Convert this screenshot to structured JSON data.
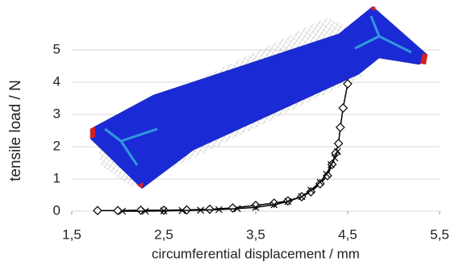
{
  "chart_data": {
    "type": "scatter",
    "xlabel": "circumferential displacement / mm",
    "ylabel": "tensile load / N",
    "xlim": [
      1.5,
      5.5
    ],
    "xticks": [
      {
        "value": 1.5,
        "label": "1,5"
      },
      {
        "value": 2.5,
        "label": "2,5"
      },
      {
        "value": 3.5,
        "label": "3,5"
      },
      {
        "value": 4.5,
        "label": "4,5"
      },
      {
        "value": 5.5,
        "label": "5,5"
      }
    ],
    "ylim": [
      0,
      5
    ],
    "yticks": [
      0,
      1,
      2,
      3,
      4,
      5
    ],
    "grid": true,
    "series": [
      {
        "color": "#000000",
        "marker": "diamond",
        "x": [
          1.78,
          2.0,
          2.25,
          2.5,
          2.75,
          3.0,
          3.25,
          3.5,
          3.7,
          3.85,
          4.0,
          4.1,
          4.2,
          4.28,
          4.33,
          4.37,
          4.4,
          4.42,
          4.45,
          4.5
        ],
        "values": [
          0.02,
          0.02,
          0.03,
          0.03,
          0.04,
          0.06,
          0.1,
          0.18,
          0.25,
          0.32,
          0.45,
          0.6,
          0.85,
          1.1,
          1.45,
          1.8,
          2.1,
          2.6,
          3.2,
          3.95
        ]
      },
      {
        "color": "#000000",
        "marker": "cross",
        "x": [
          2.05,
          2.3,
          2.5,
          2.7,
          2.9,
          3.1,
          3.3,
          3.5,
          3.7,
          3.85,
          4.0,
          4.1,
          4.2,
          4.27,
          4.32,
          4.36,
          4.39
        ],
        "values": [
          0.0,
          0.0,
          0.01,
          0.02,
          0.03,
          0.05,
          0.08,
          0.12,
          0.2,
          0.3,
          0.45,
          0.65,
          0.9,
          1.15,
          1.45,
          1.65,
          1.85
        ]
      }
    ]
  }
}
